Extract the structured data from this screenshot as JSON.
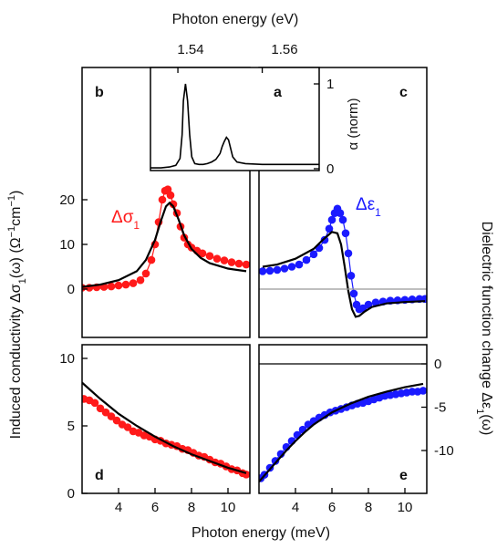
{
  "figure": {
    "top_axis_title": "Photon energy (eV)",
    "top_ticks": [
      "1.54",
      "1.56"
    ],
    "bottom_axis_title": "Photon energy (meV)",
    "left_axis_title_parts": [
      "Induced conductivity Δσ",
      "1",
      "(ω)  (Ω",
      "−1",
      "cm",
      "−1",
      ")"
    ],
    "right_axis_title_parts": [
      "Dielectric function change Δε",
      "1",
      "(ω)"
    ],
    "panel_letters": {
      "a": "a",
      "b": "b",
      "c": "c",
      "d": "d",
      "e": "e"
    },
    "series_labels": {
      "sigma": {
        "main": "Δσ",
        "sub": "1",
        "color": "#ff1a1a"
      },
      "eps": {
        "main": "Δε",
        "sub": "1",
        "color": "#1a1aff"
      }
    },
    "inset_ylabel": "α (norm)"
  },
  "chart_data": [
    {
      "panel": "a",
      "type": "line",
      "title": "",
      "xlabel": "Photon energy (eV)",
      "ylabel": "α (norm)",
      "xticks": [
        1.54,
        1.56
      ],
      "yticks": [
        0,
        1
      ],
      "xlim": [
        1.5335,
        1.5735
      ],
      "ylim": [
        0,
        1.05
      ],
      "series": [
        {
          "color": "#000000",
          "x": [
            1.5335,
            1.536,
            1.538,
            1.5395,
            1.5405,
            1.541,
            1.5413,
            1.5418,
            1.5423,
            1.5428,
            1.5433,
            1.544,
            1.545,
            1.546,
            1.547,
            1.548,
            1.549,
            1.55,
            1.5505,
            1.551,
            1.5515,
            1.552,
            1.5525,
            1.553,
            1.554,
            1.556,
            1.56,
            1.565,
            1.57,
            1.5735
          ],
          "y": [
            0.01,
            0.01,
            0.02,
            0.04,
            0.12,
            0.4,
            0.8,
            1.0,
            0.8,
            0.4,
            0.14,
            0.06,
            0.05,
            0.05,
            0.06,
            0.08,
            0.11,
            0.18,
            0.26,
            0.32,
            0.37,
            0.34,
            0.24,
            0.14,
            0.08,
            0.06,
            0.05,
            0.05,
            0.05,
            0.05
          ]
        }
      ]
    },
    {
      "panel": "b",
      "type": "line",
      "title": "",
      "xlabel": "",
      "ylabel": "Δσ1(ω) (Ω−1cm−1)",
      "xlim": [
        2,
        11.2
      ],
      "ylim": [
        -5,
        27
      ],
      "yticks": [
        0,
        10,
        20
      ],
      "series": [
        {
          "kind": "data",
          "color": "#ff1a1a",
          "x": [
            2.0,
            2.4,
            2.8,
            3.2,
            3.6,
            4.0,
            4.4,
            4.8,
            5.2,
            5.5,
            5.8,
            6.0,
            6.2,
            6.4,
            6.55,
            6.7,
            6.85,
            7.0,
            7.2,
            7.4,
            7.6,
            7.8,
            8.0,
            8.3,
            8.6,
            9.0,
            9.4,
            9.8,
            10.2,
            10.6,
            11.0
          ],
          "y": [
            0.3,
            0.3,
            0.4,
            0.5,
            0.6,
            0.8,
            1.0,
            1.3,
            2.0,
            3.5,
            6.5,
            10.0,
            15.0,
            20.0,
            22.0,
            22.3,
            21.0,
            19.0,
            17.0,
            14.0,
            11.5,
            10.0,
            9.3,
            8.6,
            8.0,
            7.4,
            6.8,
            6.4,
            6.0,
            5.7,
            5.5
          ]
        },
        {
          "kind": "fit",
          "color": "#000000",
          "x": [
            2.0,
            3.0,
            4.0,
            5.0,
            5.5,
            6.0,
            6.3,
            6.6,
            6.8,
            7.0,
            7.3,
            7.6,
            8.0,
            8.5,
            9.0,
            10.0,
            11.0
          ],
          "y": [
            0.5,
            1.0,
            2.0,
            4.0,
            6.5,
            11.0,
            15.0,
            18.5,
            19.3,
            18.5,
            15.5,
            12.0,
            9.0,
            7.0,
            5.8,
            4.6,
            4.0
          ]
        }
      ]
    },
    {
      "panel": "c",
      "type": "line",
      "title": "",
      "xlabel": "",
      "ylabel": "",
      "xlim": [
        2,
        11.2
      ],
      "ylim": [
        -9,
        23
      ],
      "series": [
        {
          "kind": "data",
          "color": "#1a1aff",
          "x": [
            2.2,
            2.6,
            3.0,
            3.4,
            3.8,
            4.2,
            4.6,
            5.0,
            5.3,
            5.6,
            5.85,
            6.0,
            6.15,
            6.3,
            6.45,
            6.6,
            6.75,
            6.9,
            7.05,
            7.2,
            7.35,
            7.5,
            7.7,
            8.0,
            8.4,
            8.8,
            9.2,
            9.6,
            10.0,
            10.4,
            10.8,
            11.1
          ],
          "y": [
            4.0,
            4.1,
            4.3,
            4.6,
            5.0,
            5.5,
            6.5,
            7.8,
            9.2,
            11.0,
            13.5,
            15.5,
            17.0,
            18.0,
            17.0,
            15.5,
            12.5,
            8.0,
            3.0,
            -1.0,
            -3.5,
            -4.5,
            -4.3,
            -3.5,
            -3.0,
            -2.8,
            -2.6,
            -2.5,
            -2.4,
            -2.3,
            -2.2,
            -2.2
          ]
        },
        {
          "kind": "fit",
          "color": "#000000",
          "x": [
            2.2,
            3.0,
            4.0,
            5.0,
            5.5,
            6.0,
            6.3,
            6.5,
            6.7,
            6.9,
            7.1,
            7.3,
            7.5,
            7.8,
            8.2,
            9.0,
            10.0,
            11.1
          ],
          "y": [
            5.0,
            5.5,
            6.8,
            9.0,
            11.0,
            12.8,
            12.5,
            10.0,
            5.0,
            -0.5,
            -4.5,
            -6.2,
            -6.0,
            -5.0,
            -4.0,
            -3.2,
            -2.9,
            -2.7
          ]
        },
        {
          "kind": "zero-line",
          "color": "#999999",
          "x": [
            2.0,
            11.2
          ],
          "y": [
            0,
            0
          ]
        }
      ]
    },
    {
      "panel": "d",
      "type": "line",
      "title": "",
      "xlabel": "Photon energy (meV)",
      "ylabel": "Δσ1(ω) (Ω−1cm−1)",
      "xticks": [
        4,
        6,
        8,
        10
      ],
      "yticks": [
        0,
        5,
        10
      ],
      "xlim": [
        2,
        11.2
      ],
      "ylim": [
        0,
        11
      ],
      "series": [
        {
          "kind": "data",
          "color": "#ff1a1a",
          "x": [
            2.1,
            2.4,
            2.7,
            3.0,
            3.3,
            3.6,
            3.9,
            4.2,
            4.5,
            4.8,
            5.1,
            5.4,
            5.7,
            6.0,
            6.3,
            6.6,
            6.9,
            7.2,
            7.5,
            7.8,
            8.1,
            8.4,
            8.7,
            9.0,
            9.3,
            9.6,
            9.9,
            10.2,
            10.5,
            10.8,
            11.0
          ],
          "y": [
            7.0,
            6.9,
            6.7,
            6.3,
            6.0,
            5.7,
            5.4,
            5.1,
            4.9,
            4.6,
            4.5,
            4.3,
            4.2,
            4.0,
            3.9,
            3.7,
            3.6,
            3.5,
            3.3,
            3.2,
            3.0,
            2.8,
            2.7,
            2.5,
            2.3,
            2.2,
            2.0,
            1.8,
            1.7,
            1.5,
            1.4
          ]
        },
        {
          "kind": "fit",
          "color": "#000000",
          "x": [
            2.0,
            3.0,
            4.0,
            5.0,
            6.0,
            7.0,
            8.0,
            9.0,
            10.0,
            11.0
          ],
          "y": [
            8.2,
            7.0,
            5.9,
            5.0,
            4.2,
            3.5,
            2.9,
            2.4,
            1.9,
            1.5
          ]
        }
      ]
    },
    {
      "panel": "e",
      "type": "line",
      "title": "",
      "xlabel": "Photon energy (meV)",
      "ylabel": "Dielectric function change Δε1(ω)",
      "xticks": [
        4,
        6,
        8,
        10
      ],
      "yticks": [
        0,
        -5,
        -10
      ],
      "xlim": [
        2,
        11.2
      ],
      "ylim": [
        -14.2,
        2.5
      ],
      "series": [
        {
          "kind": "data",
          "color": "#1a1aff",
          "x": [
            2.1,
            2.3,
            2.6,
            2.9,
            3.2,
            3.5,
            3.8,
            4.1,
            4.4,
            4.7,
            5.0,
            5.3,
            5.6,
            5.9,
            6.2,
            6.5,
            6.8,
            7.1,
            7.4,
            7.7,
            8.0,
            8.3,
            8.6,
            8.9,
            9.2,
            9.5,
            9.8,
            10.1,
            10.4,
            10.7,
            11.0
          ],
          "y": [
            -13.2,
            -12.8,
            -12.0,
            -11.2,
            -10.4,
            -9.6,
            -8.9,
            -8.2,
            -7.6,
            -7.0,
            -6.6,
            -6.2,
            -5.9,
            -5.6,
            -5.4,
            -5.2,
            -5.0,
            -4.8,
            -4.6,
            -4.5,
            -4.3,
            -4.1,
            -3.9,
            -3.7,
            -3.6,
            -3.5,
            -3.4,
            -3.3,
            -3.2,
            -3.2,
            -3.1
          ]
        },
        {
          "kind": "fit",
          "color": "#000000",
          "x": [
            2.0,
            2.5,
            3.0,
            3.5,
            4.0,
            4.5,
            5.0,
            6.0,
            7.0,
            8.0,
            9.0,
            10.0,
            11.0
          ],
          "y": [
            -13.6,
            -12.4,
            -11.2,
            -10.0,
            -8.9,
            -7.9,
            -7.0,
            -5.6,
            -4.6,
            -3.8,
            -3.2,
            -2.7,
            -2.3
          ]
        },
        {
          "kind": "zero-line",
          "color": "#000000",
          "x": [
            2.0,
            11.2
          ],
          "y": [
            0,
            0
          ]
        }
      ]
    }
  ]
}
